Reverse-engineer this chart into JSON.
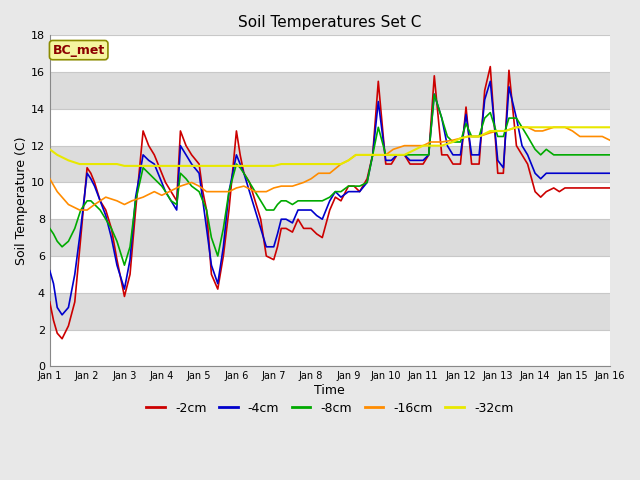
{
  "title": "Soil Temperatures Set C",
  "xlabel": "Time",
  "ylabel": "Soil Temperature (C)",
  "ylim": [
    0,
    18
  ],
  "xlim": [
    0,
    15
  ],
  "fig_bg_color": "#e8e8e8",
  "annotation_text": "BC_met",
  "annotation_color": "#8B0000",
  "annotation_bg": "#f5f5a0",
  "annotation_border": "#8B8B00",
  "series": {
    "-2cm": {
      "color": "#cc0000",
      "lw": 1.2,
      "x": [
        0.0,
        0.1,
        0.2,
        0.33,
        0.5,
        0.67,
        0.83,
        1.0,
        1.1,
        1.2,
        1.35,
        1.5,
        1.65,
        1.8,
        2.0,
        2.15,
        2.3,
        2.5,
        2.65,
        2.8,
        3.0,
        3.1,
        3.25,
        3.4,
        3.5,
        3.65,
        3.8,
        4.0,
        4.1,
        4.2,
        4.33,
        4.5,
        4.65,
        4.8,
        5.0,
        5.1,
        5.2,
        5.35,
        5.5,
        5.65,
        5.8,
        6.0,
        6.1,
        6.2,
        6.33,
        6.5,
        6.65,
        6.8,
        7.0,
        7.15,
        7.3,
        7.5,
        7.65,
        7.8,
        8.0,
        8.15,
        8.3,
        8.5,
        8.65,
        8.8,
        9.0,
        9.15,
        9.3,
        9.5,
        9.65,
        9.8,
        10.0,
        10.15,
        10.3,
        10.5,
        10.65,
        10.8,
        11.0,
        11.15,
        11.3,
        11.5,
        11.65,
        11.8,
        12.0,
        12.15,
        12.3,
        12.5,
        12.65,
        12.8,
        13.0,
        13.15,
        13.3,
        13.5,
        13.65,
        13.8,
        14.0,
        14.15,
        14.3,
        14.5,
        14.65,
        14.8,
        15.0
      ],
      "y": [
        3.5,
        2.5,
        1.8,
        1.5,
        2.2,
        3.5,
        7.0,
        10.8,
        10.5,
        10.0,
        9.0,
        8.5,
        7.5,
        5.8,
        3.8,
        5.0,
        8.5,
        12.8,
        12.0,
        11.5,
        10.5,
        10.0,
        9.5,
        9.0,
        12.8,
        12.0,
        11.5,
        11.0,
        9.5,
        8.5,
        5.0,
        4.2,
        6.0,
        8.5,
        12.8,
        11.5,
        10.5,
        10.0,
        9.0,
        8.0,
        6.0,
        5.8,
        6.5,
        7.5,
        7.5,
        7.3,
        8.0,
        7.5,
        7.5,
        7.2,
        7.0,
        8.5,
        9.2,
        9.0,
        9.8,
        9.8,
        9.5,
        10.2,
        11.5,
        15.5,
        11.0,
        11.0,
        11.5,
        11.5,
        11.0,
        11.0,
        11.0,
        11.5,
        15.8,
        11.5,
        11.5,
        11.0,
        11.0,
        14.1,
        11.0,
        11.0,
        15.0,
        16.3,
        10.5,
        10.5,
        16.1,
        12.0,
        11.5,
        11.0,
        9.5,
        9.2,
        9.5,
        9.7,
        9.5,
        9.7,
        9.7,
        9.7,
        9.7,
        9.7,
        9.7,
        9.7,
        9.7
      ]
    },
    "-4cm": {
      "color": "#0000cc",
      "lw": 1.2,
      "x": [
        0.0,
        0.1,
        0.2,
        0.33,
        0.5,
        0.67,
        0.83,
        1.0,
        1.1,
        1.2,
        1.35,
        1.5,
        1.65,
        1.8,
        2.0,
        2.15,
        2.3,
        2.5,
        2.65,
        2.8,
        3.0,
        3.1,
        3.25,
        3.4,
        3.5,
        3.65,
        3.8,
        4.0,
        4.1,
        4.2,
        4.33,
        4.5,
        4.65,
        4.8,
        5.0,
        5.1,
        5.2,
        5.35,
        5.5,
        5.65,
        5.8,
        6.0,
        6.1,
        6.2,
        6.33,
        6.5,
        6.65,
        6.8,
        7.0,
        7.15,
        7.3,
        7.5,
        7.65,
        7.8,
        8.0,
        8.15,
        8.3,
        8.5,
        8.65,
        8.8,
        9.0,
        9.15,
        9.3,
        9.5,
        9.65,
        9.8,
        10.0,
        10.15,
        10.3,
        10.5,
        10.65,
        10.8,
        11.0,
        11.15,
        11.3,
        11.5,
        11.65,
        11.8,
        12.0,
        12.15,
        12.3,
        12.5,
        12.65,
        12.8,
        13.0,
        13.15,
        13.3,
        13.5,
        13.65,
        13.8,
        14.0,
        14.15,
        14.3,
        14.5,
        14.65,
        14.8,
        15.0
      ],
      "y": [
        5.2,
        4.5,
        3.2,
        2.8,
        3.2,
        5.0,
        7.5,
        10.5,
        10.2,
        9.8,
        9.0,
        8.2,
        7.0,
        5.5,
        4.2,
        5.8,
        9.2,
        11.5,
        11.2,
        11.0,
        10.0,
        9.5,
        9.0,
        8.5,
        12.0,
        11.5,
        11.0,
        10.5,
        9.0,
        7.5,
        5.5,
        4.5,
        6.5,
        9.5,
        11.5,
        11.0,
        10.5,
        9.5,
        8.5,
        7.5,
        6.5,
        6.5,
        7.2,
        8.0,
        8.0,
        7.8,
        8.5,
        8.5,
        8.5,
        8.2,
        8.0,
        9.0,
        9.5,
        9.2,
        9.5,
        9.5,
        9.5,
        10.0,
        11.5,
        14.4,
        11.2,
        11.2,
        11.5,
        11.5,
        11.2,
        11.2,
        11.2,
        11.5,
        14.8,
        13.5,
        12.0,
        11.5,
        11.5,
        13.7,
        11.5,
        11.5,
        14.5,
        15.5,
        11.2,
        10.8,
        15.2,
        13.5,
        12.0,
        11.5,
        10.5,
        10.2,
        10.5,
        10.5,
        10.5,
        10.5,
        10.5,
        10.5,
        10.5,
        10.5,
        10.5,
        10.5,
        10.5
      ]
    },
    "-8cm": {
      "color": "#00aa00",
      "lw": 1.2,
      "x": [
        0.0,
        0.1,
        0.2,
        0.33,
        0.5,
        0.67,
        0.83,
        1.0,
        1.1,
        1.2,
        1.35,
        1.5,
        1.65,
        1.8,
        2.0,
        2.15,
        2.3,
        2.5,
        2.65,
        2.8,
        3.0,
        3.1,
        3.25,
        3.4,
        3.5,
        3.65,
        3.8,
        4.0,
        4.1,
        4.2,
        4.33,
        4.5,
        4.65,
        4.8,
        5.0,
        5.1,
        5.2,
        5.35,
        5.5,
        5.65,
        5.8,
        6.0,
        6.1,
        6.2,
        6.33,
        6.5,
        6.65,
        6.8,
        7.0,
        7.15,
        7.3,
        7.5,
        7.65,
        7.8,
        8.0,
        8.15,
        8.3,
        8.5,
        8.65,
        8.8,
        9.0,
        9.15,
        9.3,
        9.5,
        9.65,
        9.8,
        10.0,
        10.15,
        10.3,
        10.5,
        10.65,
        10.8,
        11.0,
        11.15,
        11.3,
        11.5,
        11.65,
        11.8,
        12.0,
        12.15,
        12.3,
        12.5,
        12.65,
        12.8,
        13.0,
        13.15,
        13.3,
        13.5,
        13.65,
        13.8,
        14.0,
        14.15,
        14.3,
        14.5,
        14.65,
        14.8,
        15.0
      ],
      "y": [
        7.5,
        7.2,
        6.8,
        6.5,
        6.8,
        7.5,
        8.5,
        9.0,
        9.0,
        8.8,
        8.5,
        8.0,
        7.5,
        6.8,
        5.5,
        6.5,
        9.0,
        10.8,
        10.5,
        10.2,
        9.8,
        9.5,
        9.0,
        8.8,
        10.5,
        10.2,
        9.8,
        9.5,
        9.0,
        8.5,
        7.0,
        6.0,
        7.5,
        9.5,
        11.0,
        10.8,
        10.5,
        10.0,
        9.5,
        9.0,
        8.5,
        8.5,
        8.8,
        9.0,
        9.0,
        8.8,
        9.0,
        9.0,
        9.0,
        9.0,
        9.0,
        9.2,
        9.5,
        9.5,
        9.8,
        9.8,
        9.8,
        10.0,
        11.5,
        13.0,
        11.5,
        11.5,
        11.5,
        11.5,
        11.5,
        11.5,
        11.5,
        11.5,
        14.8,
        13.5,
        12.5,
        12.2,
        12.2,
        13.2,
        12.5,
        12.5,
        13.5,
        13.8,
        12.5,
        12.5,
        13.5,
        13.5,
        13.0,
        12.5,
        11.8,
        11.5,
        11.8,
        11.5,
        11.5,
        11.5,
        11.5,
        11.5,
        11.5,
        11.5,
        11.5,
        11.5,
        11.5
      ]
    },
    "-16cm": {
      "color": "#ff8c00",
      "lw": 1.2,
      "x": [
        0.0,
        0.2,
        0.5,
        0.8,
        1.0,
        1.2,
        1.5,
        1.8,
        2.0,
        2.2,
        2.5,
        2.8,
        3.0,
        3.2,
        3.5,
        3.8,
        4.0,
        4.2,
        4.5,
        4.8,
        5.0,
        5.2,
        5.5,
        5.8,
        6.0,
        6.2,
        6.5,
        6.8,
        7.0,
        7.2,
        7.5,
        7.8,
        8.0,
        8.2,
        8.5,
        8.8,
        9.0,
        9.2,
        9.5,
        9.8,
        10.0,
        10.2,
        10.5,
        10.8,
        11.0,
        11.2,
        11.5,
        11.8,
        12.0,
        12.2,
        12.5,
        12.8,
        13.0,
        13.2,
        13.5,
        13.8,
        14.0,
        14.2,
        14.5,
        14.8,
        15.0
      ],
      "y": [
        10.2,
        9.5,
        8.8,
        8.5,
        8.5,
        8.8,
        9.2,
        9.0,
        8.8,
        9.0,
        9.2,
        9.5,
        9.3,
        9.5,
        9.8,
        10.0,
        9.8,
        9.5,
        9.5,
        9.5,
        9.7,
        9.8,
        9.5,
        9.5,
        9.7,
        9.8,
        9.8,
        10.0,
        10.2,
        10.5,
        10.5,
        11.0,
        11.2,
        11.5,
        11.5,
        11.5,
        11.5,
        11.8,
        12.0,
        12.0,
        12.0,
        12.2,
        12.2,
        12.3,
        12.4,
        12.5,
        12.5,
        12.7,
        12.8,
        12.8,
        13.0,
        13.0,
        12.8,
        12.8,
        13.0,
        13.0,
        12.8,
        12.5,
        12.5,
        12.5,
        12.3
      ]
    },
    "-32cm": {
      "color": "#e8e800",
      "lw": 1.5,
      "x": [
        0.0,
        0.2,
        0.5,
        0.8,
        1.0,
        1.2,
        1.5,
        1.8,
        2.0,
        2.2,
        2.5,
        2.8,
        3.0,
        3.2,
        3.5,
        3.8,
        4.0,
        4.2,
        4.5,
        4.8,
        5.0,
        5.2,
        5.5,
        5.8,
        6.0,
        6.2,
        6.5,
        6.8,
        7.0,
        7.2,
        7.5,
        7.8,
        8.0,
        8.2,
        8.5,
        8.8,
        9.0,
        9.2,
        9.5,
        9.8,
        10.0,
        10.2,
        10.5,
        10.8,
        11.0,
        11.2,
        11.5,
        11.8,
        12.0,
        12.2,
        12.5,
        12.8,
        13.0,
        13.2,
        13.5,
        13.8,
        14.0,
        14.2,
        14.5,
        14.8,
        15.0
      ],
      "y": [
        11.8,
        11.5,
        11.2,
        11.0,
        11.0,
        11.0,
        11.0,
        11.0,
        10.9,
        10.9,
        10.9,
        10.9,
        10.9,
        10.9,
        10.9,
        10.9,
        10.9,
        10.9,
        10.9,
        10.9,
        10.9,
        10.9,
        10.9,
        10.9,
        10.9,
        11.0,
        11.0,
        11.0,
        11.0,
        11.0,
        11.0,
        11.0,
        11.2,
        11.5,
        11.5,
        11.5,
        11.5,
        11.5,
        11.5,
        11.8,
        12.0,
        12.0,
        12.0,
        12.2,
        12.4,
        12.5,
        12.5,
        12.8,
        12.8,
        12.8,
        13.0,
        13.0,
        13.0,
        13.0,
        13.0,
        13.0,
        13.0,
        13.0,
        13.0,
        13.0,
        13.0
      ]
    }
  },
  "xtick_positions": [
    0,
    1,
    2,
    3,
    4,
    5,
    6,
    7,
    8,
    9,
    10,
    11,
    12,
    13,
    14,
    15
  ],
  "xtick_labels": [
    "Jan 1",
    "Jan 2",
    "Jan 3",
    "Jan 4",
    "Jan 5",
    "Jan 6",
    "Jan 7",
    "Jan 8",
    "Jan 9",
    "Jan 10",
    "Jan 11",
    "Jan 12",
    "Jan 13",
    "Jan 14",
    "Jan 15",
    "Jan 16"
  ],
  "ytick_positions": [
    0,
    2,
    4,
    6,
    8,
    10,
    12,
    14,
    16,
    18
  ],
  "ytick_labels": [
    "0",
    "2",
    "4",
    "6",
    "8",
    "10",
    "12",
    "14",
    "16",
    "18"
  ],
  "legend_entries": [
    "-2cm",
    "-4cm",
    "-8cm",
    "-16cm",
    "-32cm"
  ],
  "legend_colors": [
    "#cc0000",
    "#0000cc",
    "#00aa00",
    "#ff8c00",
    "#e8e800"
  ],
  "band_colors": [
    "#ffffff",
    "#dcdcdc"
  ]
}
